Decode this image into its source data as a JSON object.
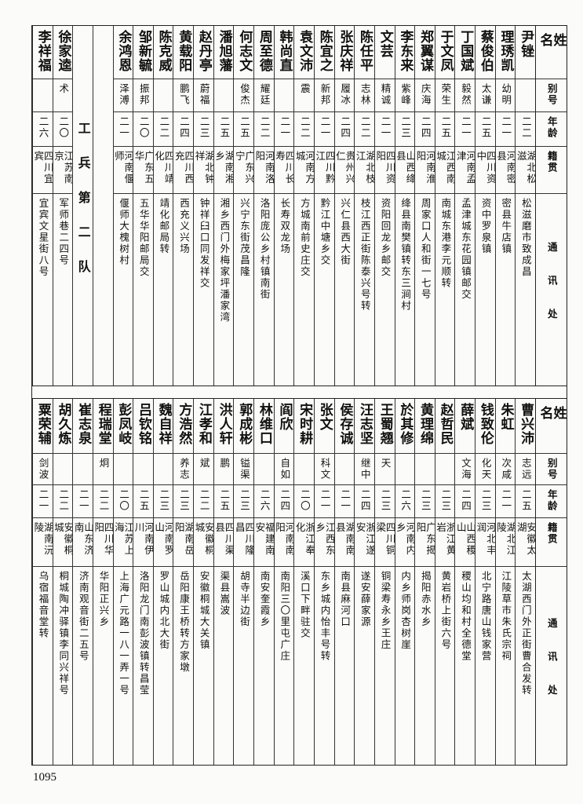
{
  "header": {
    "name": "姓名",
    "alias": "别号",
    "age": "年龄",
    "native": "籍贯",
    "address": "通讯处"
  },
  "top": {
    "entries_before": [
      {
        "name": "尹锉",
        "alias": "",
        "age": "二二",
        "native": "湖北松滋",
        "address": "松滋磨市致成昌"
      },
      {
        "name": "理琇凯",
        "alias": "幼明",
        "age": "二一",
        "native": "河南密县",
        "address": "密县牛店镇"
      },
      {
        "name": "蔡俊伯",
        "alias": "太谦",
        "age": "二五",
        "native": "四川资中",
        "address": "资中罗泉镇"
      },
      {
        "name": "丁国斌",
        "alias": "毅然",
        "age": "二一",
        "native": "河南孟津",
        "address": "孟津城东花园镇邮交"
      },
      {
        "name": "于文凤",
        "alias": "荣生",
        "age": "二五",
        "native": "江西南城",
        "address": "南城东港李元顺转"
      },
      {
        "name": "郑翼谋",
        "alias": "庆海",
        "age": "二四",
        "native": "河南淮阳",
        "address": "周家口人和街一七号"
      },
      {
        "name": "李东来",
        "alias": "紫峰",
        "age": "二三",
        "native": "山西绛县",
        "address": "绛县南樊镇转东三涧村"
      },
      {
        "name": "文芸",
        "alias": "精诚",
        "age": "二一",
        "native": "四川资阳",
        "address": "资阳回龙乡邮交"
      },
      {
        "name": "陈任平",
        "alias": "志林",
        "age": "二二",
        "native": "湖北枝江",
        "address": "枝江西正街陈泰兴号转"
      },
      {
        "name": "张庆祥",
        "alias": "履冰",
        "age": "二四",
        "native": "贵州兴仁",
        "address": "兴仁县西大街"
      },
      {
        "name": "陈宜之",
        "alias": "新邦",
        "age": "二一",
        "native": "四川黔江",
        "address": "黔江中塘乡交"
      },
      {
        "name": "袁文沛",
        "alias": "震",
        "age": "二二",
        "native": "河南方城",
        "address": "方城南前史庄交"
      },
      {
        "name": "韩尚直",
        "alias": "",
        "age": "二一",
        "native": "四川长寿",
        "address": "长寿双龙场"
      },
      {
        "name": "周至德",
        "alias": "耀廷",
        "age": "二二",
        "native": "河南洛阳",
        "address": "洛阳庞公乡村镇南街"
      },
      {
        "name": "何志文",
        "alias": "俊杰",
        "age": "二五",
        "native": "广东兴宁",
        "address": "兴宁东街茂昌隆"
      },
      {
        "name": "潘旭藩",
        "alias": "",
        "age": "二五",
        "native": "湖南湘乡",
        "address": "湘乡西门外梅家坪潘家湾"
      },
      {
        "name": "赵丹亭",
        "alias": "蔚福",
        "age": "二三",
        "native": "湖北钟祥",
        "address": "钟祥臼口同发祥交"
      },
      {
        "name": "黄载阳",
        "alias": "鹏飞",
        "age": "二四",
        "native": "四川西充",
        "address": "西充义兴场"
      },
      {
        "name": "陈克威",
        "alias": "",
        "age": "二二",
        "native": "四川靖化",
        "address": "靖化邮局转"
      },
      {
        "name": "邹新毓",
        "alias": "振邦",
        "age": "二〇",
        "native": "广东五华",
        "address": "五华华阳邮局交"
      },
      {
        "name": "余鸿恩",
        "alias": "泽溥",
        "age": "二一",
        "native": "河南偃师",
        "address": "偃师大槐树村"
      }
    ],
    "section_label": "工兵第二队",
    "entries_after": [
      {
        "name": "徐家逵",
        "alias": "术",
        "age": "二〇",
        "native": "江苏南京",
        "address": "军师巷二四号"
      },
      {
        "name": "李祥福",
        "alias": "",
        "age": "二六",
        "native": "四川宜宾",
        "address": "宜宾文星街八号"
      }
    ]
  },
  "bottom": {
    "entries": [
      {
        "name": "曹兴沛",
        "alias": "志远",
        "age": "二五",
        "native": "安徽太湖",
        "address": "太湖西门外正街曹合发转"
      },
      {
        "name": "朱虹",
        "alias": "次咸",
        "age": "二一",
        "native": "湖北江陵",
        "address": "江陵草市朱氏宗祠"
      },
      {
        "name": "钱致伦",
        "alias": "化天",
        "age": "二三",
        "native": "河北丰润",
        "address": "北宁路唐山钱家营"
      },
      {
        "name": "薛斌",
        "alias": "文海",
        "age": "二四",
        "native": "山西稷山",
        "address": "稷山均和村全德堂"
      },
      {
        "name": "赵哲民",
        "alias": "",
        "age": "二三",
        "native": "浙江黄岩",
        "address": "黄岩桥上街六号"
      },
      {
        "name": "黄理绵",
        "alias": "",
        "age": "二三",
        "native": "广东揭阳",
        "address": "揭阳赤水乡"
      },
      {
        "name": "於其修",
        "alias": "",
        "age": "二六",
        "native": "河南内乡",
        "address": "内乡师岗杏树崖"
      },
      {
        "name": "王蜀翘",
        "alias": "天",
        "age": "二三",
        "native": "四川铜梁",
        "address": "铜梁寿永乡王庄"
      },
      {
        "name": "汪志坚",
        "alias": "继中",
        "age": "二四",
        "native": "浙江遂安",
        "address": "遂安薛家源"
      },
      {
        "name": "侯存诚",
        "alias": "",
        "age": "二一",
        "native": "湖南南县",
        "address": "南县麻河口"
      },
      {
        "name": "张文",
        "alias": "科文",
        "age": "二一",
        "native": "江西东乡",
        "address": "东乡城内怡丰号转"
      },
      {
        "name": "宋时耕",
        "alias": "",
        "age": "二〇",
        "native": "浙江奉化",
        "address": "溪口下畔驻交"
      },
      {
        "name": "阎欣",
        "alias": "自如",
        "age": "二四",
        "native": "河南南阳",
        "address": "南阳三〇里屯广庄"
      },
      {
        "name": "林维口",
        "alias": "",
        "age": "二六",
        "native": "福建南安",
        "address": "南安奎霞乡"
      },
      {
        "name": "郭成彬",
        "alias": "镒渠",
        "age": "二三",
        "native": "四川隆昌",
        "address": "胡寺半边街"
      },
      {
        "name": "洪人轩",
        "alias": "鹏",
        "age": "二五",
        "native": "四川渠县",
        "address": "渠县嵩波"
      },
      {
        "name": "江孝和",
        "alias": "斌",
        "age": "二二",
        "native": "安徽桐城",
        "address": "安徽桐城大关镇"
      },
      {
        "name": "方浩然",
        "alias": "养志",
        "age": "二三",
        "native": "湖南岳阳",
        "address": "岳阳康王桥转方家墩"
      },
      {
        "name": "魏自祥",
        "alias": "",
        "age": "二三",
        "native": "河南罗山",
        "address": "罗山城内北大街"
      },
      {
        "name": "吕钦铭",
        "alias": "",
        "age": "二五",
        "native": "河南伊川",
        "address": "洛阳龙门南彭波镇转昌莹"
      },
      {
        "name": "彭凤岐",
        "alias": "",
        "age": "二〇",
        "native": "江苏上海",
        "address": "上海广元路一八一弄一号"
      },
      {
        "name": "程瑞堂",
        "alias": "炯",
        "age": "二二",
        "native": "四川华阳",
        "address": "华阳正兴乡"
      },
      {
        "name": "崔志泉",
        "alias": "",
        "age": "二一",
        "native": "山东济南",
        "address": "济南观音街二五号"
      },
      {
        "name": "胡久炼",
        "alias": "",
        "age": "二二",
        "native": "安徽桐城",
        "address": "桐城陶冲驿镇李同兴祥号"
      },
      {
        "name": "粟荣辅",
        "alias": "剑波",
        "age": "二一",
        "native": "湖南沅陵",
        "address": "乌宿福音堂转"
      }
    ]
  },
  "page_number": "1095"
}
